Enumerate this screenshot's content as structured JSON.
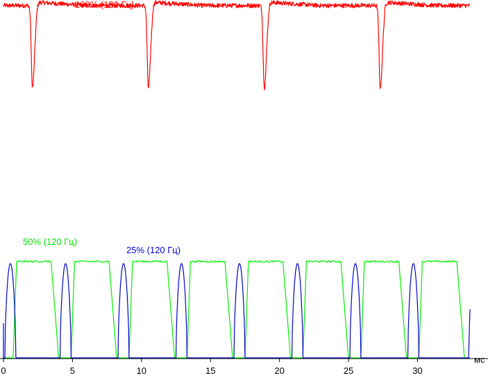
{
  "chart_data": {
    "type": "line",
    "xlabel": "мс",
    "xlim": [
      0,
      33.8
    ],
    "xticks": [
      0,
      5,
      10,
      15,
      20,
      25,
      30
    ],
    "grid": false,
    "legend": "inline labels",
    "series": [
      {
        "name": "100% (120 Гц)",
        "color": "#ff0000",
        "period_ms": 8.4,
        "first_dip_ms": 2.1,
        "dip_depth_rel": 0.74,
        "baseline_rel": 0.95,
        "note_values": "relative brightness, 1 = top of trace"
      },
      {
        "name": "50% (120 Гц)",
        "color": "#00ee00",
        "period_ms": 4.2,
        "on_start_ms": [
          0.7,
          4.9,
          9.1,
          13.3,
          17.5,
          21.7,
          25.9,
          30.1
        ],
        "on_duration_ms": 3.0,
        "level_rel": 0.93
      },
      {
        "name": "25% (120 Гц)",
        "color": "#0000cc",
        "period_ms": 4.2,
        "pulse_start_ms": [
          0.1,
          4.1,
          8.3,
          12.5,
          16.7,
          20.9,
          25.1,
          29.3
        ],
        "pulse_duration_ms": 0.8,
        "level_rel": 0.93
      }
    ]
  }
}
